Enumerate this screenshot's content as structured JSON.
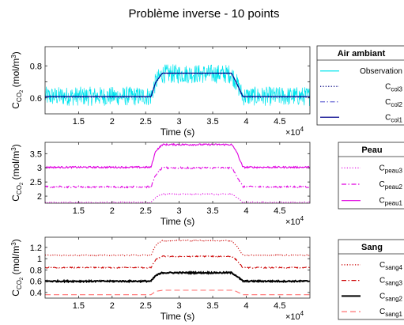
{
  "figure_title": "Problème inverse - 10 points",
  "chart_data": [
    {
      "type": "line",
      "xlabel": "Time (s)",
      "x_multiplier": "×10",
      "x_multiplier_exp": "4",
      "ylabel": "C",
      "ylabel_sub": "CO",
      "ylabel_subsub": "2",
      "ylabel_units": "(mol/m",
      "ylabel_units_sup": "3",
      "ylabel_units_end": ")",
      "xlim": [
        10000,
        49500
      ],
      "ylim": [
        0.5,
        0.92
      ],
      "xticks": [
        15000,
        20000,
        25000,
        30000,
        35000,
        40000,
        45000
      ],
      "xtick_labels": [
        "1.5",
        "2",
        "2.5",
        "3",
        "3.5",
        "4",
        "4.5"
      ],
      "yticks": [
        0.6,
        0.7,
        0.8
      ],
      "ytick_labels": [
        "0.6",
        "",
        "0.8"
      ],
      "legend_title": "Air ambiant",
      "legend_placement": "outside-right",
      "series": [
        {
          "name": "Observation",
          "name_sub": "",
          "style": "noisy",
          "color": "#00e5ee",
          "noise": 0.06,
          "x": [
            10000,
            25800,
            26500,
            27500,
            37800,
            38500,
            39500,
            49500
          ],
          "y": [
            0.61,
            0.61,
            0.7,
            0.75,
            0.75,
            0.7,
            0.61,
            0.61
          ]
        },
        {
          "name": "C",
          "name_sub": "col3",
          "style": "dotted",
          "color": "#000080",
          "x": [
            10000,
            25800,
            26500,
            27500,
            37800,
            38500,
            39500,
            49500
          ],
          "y": [
            0.605,
            0.605,
            0.695,
            0.752,
            0.752,
            0.695,
            0.605,
            0.605
          ]
        },
        {
          "name": "C",
          "name_sub": "col2",
          "style": "dashdot",
          "color": "#6b6bd6",
          "x": [
            10000,
            25800,
            26500,
            27500,
            37800,
            38500,
            39500,
            49500
          ],
          "y": [
            0.607,
            0.607,
            0.697,
            0.754,
            0.754,
            0.697,
            0.607,
            0.607
          ]
        },
        {
          "name": "C",
          "name_sub": "col1",
          "style": "solid",
          "color": "#00008b",
          "x": [
            10000,
            25800,
            26500,
            27500,
            37800,
            38500,
            39500,
            49500
          ],
          "y": [
            0.608,
            0.608,
            0.698,
            0.755,
            0.755,
            0.698,
            0.608,
            0.608
          ]
        }
      ]
    },
    {
      "type": "line",
      "xlabel": "Time (s)",
      "x_multiplier": "×10",
      "x_multiplier_exp": "4",
      "ylabel": "C",
      "ylabel_sub": "CO",
      "ylabel_subsub": "2",
      "ylabel_units": "(mol/m",
      "ylabel_units_sup": "3",
      "ylabel_units_end": ")",
      "xlim": [
        10000,
        49500
      ],
      "ylim": [
        1.75,
        3.9
      ],
      "xticks": [
        15000,
        20000,
        25000,
        30000,
        35000,
        40000,
        45000
      ],
      "xtick_labels": [
        "1.5",
        "2",
        "2.5",
        "3",
        "3.5",
        "4",
        "4.5"
      ],
      "yticks": [
        2,
        2.5,
        3,
        3.5
      ],
      "ytick_labels": [
        "2",
        "2.5",
        "3",
        "3.5"
      ],
      "legend_title": "Peau",
      "legend_placement": "outside-right",
      "series": [
        {
          "name": "C",
          "name_sub": "peau3",
          "style": "dotted",
          "color": "#e000e0",
          "noise": 0.02,
          "x": [
            10000,
            25800,
            26500,
            27500,
            37800,
            38500,
            39500,
            49500
          ],
          "y": [
            1.78,
            1.78,
            1.97,
            2.07,
            2.07,
            1.97,
            1.78,
            1.78
          ]
        },
        {
          "name": "C",
          "name_sub": "peau2",
          "style": "dashdot",
          "color": "#e000e0",
          "noise": 0.03,
          "x": [
            10000,
            25800,
            26500,
            27500,
            37800,
            38500,
            39500,
            49500
          ],
          "y": [
            2.33,
            2.33,
            2.75,
            3.0,
            3.0,
            2.75,
            2.33,
            2.33
          ]
        },
        {
          "name": "C",
          "name_sub": "peau1",
          "style": "solid",
          "color": "#e000e0",
          "noise": 0.03,
          "x": [
            10000,
            25800,
            26500,
            27500,
            37800,
            38500,
            39500,
            49500
          ],
          "y": [
            3.02,
            3.02,
            3.6,
            3.82,
            3.82,
            3.6,
            3.02,
            3.02
          ]
        }
      ]
    },
    {
      "type": "line",
      "xlabel": "Time (s)",
      "x_multiplier": "×10",
      "x_multiplier_exp": "4",
      "ylabel": "C",
      "ylabel_sub": "CO",
      "ylabel_subsub": "2",
      "ylabel_units": "(mol/m",
      "ylabel_units_sup": "3",
      "ylabel_units_end": ")",
      "xlim": [
        10000,
        49500
      ],
      "ylim": [
        0.3,
        1.38
      ],
      "xticks": [
        15000,
        20000,
        25000,
        30000,
        35000,
        40000,
        45000
      ],
      "xtick_labels": [
        "1.5",
        "2",
        "2.5",
        "3",
        "3.5",
        "4",
        "4.5"
      ],
      "yticks": [
        0.4,
        0.6,
        0.8,
        1.0,
        1.2
      ],
      "ytick_labels": [
        "0.4",
        "0.6",
        "0.8",
        "1",
        "1.2"
      ],
      "legend_title": "Sang",
      "legend_placement": "outside-right",
      "series": [
        {
          "name": "C",
          "name_sub": "sang4",
          "style": "dotted",
          "color": "#cc0000",
          "noise": 0.01,
          "x": [
            10000,
            25800,
            26500,
            27500,
            37800,
            38500,
            39500,
            49500
          ],
          "y": [
            1.06,
            1.06,
            1.24,
            1.32,
            1.32,
            1.24,
            1.06,
            1.06
          ]
        },
        {
          "name": "C",
          "name_sub": "sang3",
          "style": "dashdot",
          "color": "#cc0000",
          "noise": 0.01,
          "x": [
            10000,
            25800,
            26500,
            27500,
            37800,
            38500,
            39500,
            49500
          ],
          "y": [
            0.84,
            0.84,
            0.98,
            1.04,
            1.04,
            0.98,
            0.84,
            0.84
          ]
        },
        {
          "name": "C",
          "name_sub": "sang2",
          "style": "thick",
          "color": "#000000",
          "noise": 0.012,
          "x": [
            10000,
            25800,
            26500,
            27500,
            37800,
            38500,
            39500,
            49500
          ],
          "y": [
            0.6,
            0.6,
            0.7,
            0.75,
            0.75,
            0.7,
            0.6,
            0.6
          ]
        },
        {
          "name": "C",
          "name_sub": "sang1",
          "style": "dashed",
          "color": "#ff7070",
          "noise": 0.0,
          "x": [
            10000,
            25800,
            26500,
            27500,
            37800,
            38500,
            39500,
            49500
          ],
          "y": [
            0.36,
            0.36,
            0.42,
            0.44,
            0.44,
            0.42,
            0.36,
            0.36
          ]
        }
      ]
    }
  ]
}
